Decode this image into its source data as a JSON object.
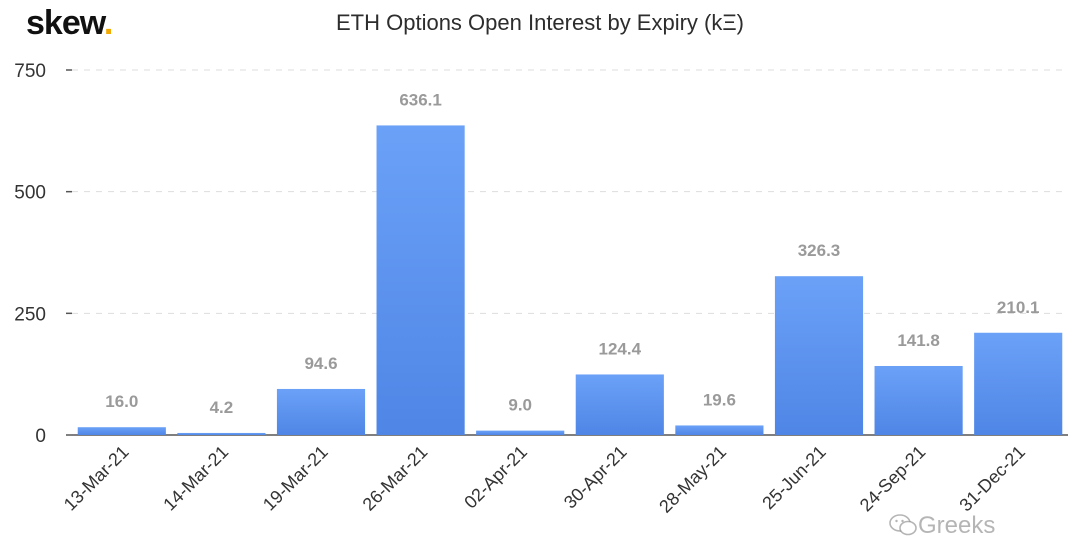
{
  "logo": {
    "text": "skew",
    "dot": "."
  },
  "watermark": "Greeks",
  "chart_data": {
    "type": "bar",
    "title": "ETH Options Open Interest by Expiry (kΞ)",
    "xlabel": "",
    "ylabel": "",
    "categories": [
      "13-Mar-21",
      "14-Mar-21",
      "19-Mar-21",
      "26-Mar-21",
      "02-Apr-21",
      "30-Apr-21",
      "28-May-21",
      "25-Jun-21",
      "24-Sep-21",
      "31-Dec-21"
    ],
    "values": [
      16.0,
      4.2,
      94.6,
      636.1,
      9.0,
      124.4,
      19.6,
      326.3,
      141.8,
      210.1
    ],
    "value_labels": [
      "16.0",
      "4.2",
      "94.6",
      "636.1",
      "9.0",
      "124.4",
      "19.6",
      "326.3",
      "141.8",
      "210.1"
    ],
    "ylim": [
      0,
      750
    ],
    "yticks": [
      0,
      250,
      500,
      750
    ],
    "grid": true,
    "bar_color_top": "#6ba1f7",
    "bar_color_bottom": "#4f86e6",
    "label_color": "#9a9a9a"
  }
}
